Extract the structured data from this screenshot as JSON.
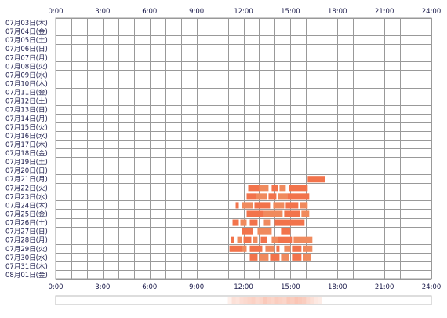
{
  "chart_data": {
    "type": "timeline",
    "title": "",
    "xlabel": "",
    "ylabel": "",
    "grid": true,
    "x_range_hours": [
      0,
      24
    ],
    "x_ticks": [
      "0:00",
      "3:00",
      "6:00",
      "9:00",
      "12:00",
      "15:00",
      "18:00",
      "21:00",
      "24:00"
    ],
    "rows": [
      {
        "label": "07月03日(木)",
        "segments": []
      },
      {
        "label": "07月04日(金)",
        "segments": []
      },
      {
        "label": "07月05日(土)",
        "segments": []
      },
      {
        "label": "07月06日(日)",
        "segments": []
      },
      {
        "label": "07月07日(月)",
        "segments": []
      },
      {
        "label": "07月08日(火)",
        "segments": []
      },
      {
        "label": "07月09日(水)",
        "segments": []
      },
      {
        "label": "07月10日(木)",
        "segments": []
      },
      {
        "label": "07月11日(金)",
        "segments": []
      },
      {
        "label": "07月12日(土)",
        "segments": []
      },
      {
        "label": "07月13日(日)",
        "segments": []
      },
      {
        "label": "07月14日(月)",
        "segments": []
      },
      {
        "label": "07月15日(火)",
        "segments": []
      },
      {
        "label": "07月16日(水)",
        "segments": []
      },
      {
        "label": "07月17日(木)",
        "segments": []
      },
      {
        "label": "07月18日(金)",
        "segments": []
      },
      {
        "label": "07月19日(土)",
        "segments": []
      },
      {
        "label": "07月20日(日)",
        "segments": []
      },
      {
        "label": "07月21日(月)",
        "segments": [
          [
            16.1,
            17.2
          ]
        ]
      },
      {
        "label": "07月22日(火)",
        "segments": [
          [
            12.3,
            13.0
          ],
          [
            13.0,
            13.6
          ],
          [
            13.8,
            14.2
          ],
          [
            14.3,
            14.7
          ],
          [
            14.9,
            16.1
          ]
        ]
      },
      {
        "label": "07月23日(水)",
        "segments": [
          [
            12.2,
            12.8
          ],
          [
            12.8,
            13.5
          ],
          [
            13.6,
            14.1
          ],
          [
            14.2,
            14.8
          ],
          [
            14.8,
            16.2
          ]
        ]
      },
      {
        "label": "07月24日(木)",
        "segments": [
          [
            11.5,
            11.7
          ],
          [
            11.9,
            12.6
          ],
          [
            12.7,
            13.7
          ],
          [
            13.9,
            14.6
          ],
          [
            14.7,
            15.5
          ],
          [
            15.6,
            16.1
          ]
        ]
      },
      {
        "label": "07月25日(金)",
        "segments": [
          [
            12.2,
            13.3
          ],
          [
            13.3,
            14.5
          ],
          [
            14.6,
            15.6
          ],
          [
            15.7,
            16.2
          ]
        ]
      },
      {
        "label": "07月26日(土)",
        "segments": [
          [
            11.3,
            11.7
          ],
          [
            11.8,
            12.2
          ],
          [
            12.4,
            12.9
          ],
          [
            13.3,
            13.7
          ],
          [
            14.0,
            15.9
          ]
        ]
      },
      {
        "label": "07月27日(日)",
        "segments": [
          [
            11.9,
            12.6
          ],
          [
            12.9,
            13.8
          ],
          [
            14.4,
            15.0
          ]
        ]
      },
      {
        "label": "07月28日(月)",
        "segments": [
          [
            11.2,
            11.4
          ],
          [
            11.6,
            11.9
          ],
          [
            12.0,
            12.5
          ],
          [
            12.6,
            12.9
          ],
          [
            13.1,
            13.5
          ],
          [
            13.8,
            14.2
          ],
          [
            14.2,
            15.1
          ],
          [
            15.2,
            16.4
          ]
        ]
      },
      {
        "label": "07月29日(火)",
        "segments": [
          [
            11.1,
            11.9
          ],
          [
            11.9,
            12.2
          ],
          [
            12.4,
            13.2
          ],
          [
            13.4,
            14.0
          ],
          [
            14.1,
            14.3
          ],
          [
            14.6,
            15.0
          ],
          [
            15.1,
            15.7
          ],
          [
            15.8,
            16.4
          ]
        ]
      },
      {
        "label": "07月30日(水)",
        "segments": [
          [
            12.4,
            12.9
          ],
          [
            13.0,
            13.6
          ],
          [
            13.7,
            14.3
          ],
          [
            14.4,
            14.9
          ],
          [
            15.1,
            15.7
          ],
          [
            15.8,
            16.3
          ]
        ]
      },
      {
        "label": "07月31日(木)",
        "segments": []
      },
      {
        "label": "08月01日(金)",
        "segments": []
      }
    ],
    "summary_strip": {
      "bins_per_hour": 4,
      "intensity": [
        0.2,
        0.4,
        0.35,
        0.45,
        0.5,
        0.55,
        0.6,
        0.5,
        0.55,
        0.7,
        0.6,
        0.55,
        0.65,
        0.6,
        0.55,
        0.7,
        0.65,
        0.75,
        0.7,
        0.65,
        0.5,
        0.4,
        0.3,
        0.25
      ]
    },
    "colors": {
      "bar": "#f2734b",
      "bar_alt": "#f08a5d",
      "grid": "#999999",
      "axis_text": "#1a1a4a",
      "label_text": "#1a1a4a",
      "strip_border": "#bbbbbb",
      "strip_fill": "#f2734b"
    }
  }
}
